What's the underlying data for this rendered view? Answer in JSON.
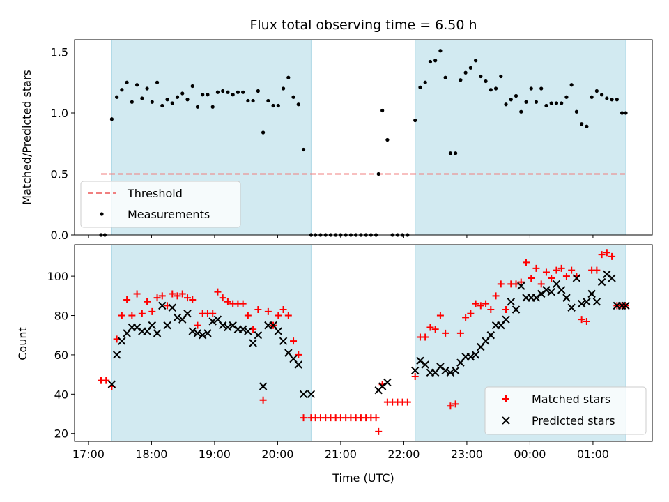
{
  "chart_data": {
    "type": "scatter",
    "title": "Flux total observing time = 6.50 h",
    "xlabel": "Time (UTC)",
    "x_range_hours": [
      16.78,
      25.94
    ],
    "x_ticks": [
      "17:00",
      "18:00",
      "19:00",
      "20:00",
      "21:00",
      "22:00",
      "23:00",
      "00:00",
      "01:00"
    ],
    "x_tick_hours": [
      17,
      18,
      19,
      20,
      21,
      22,
      23,
      24,
      25
    ],
    "observing_windows_hours": [
      [
        17.37,
        20.53
      ],
      [
        22.18,
        25.52
      ]
    ],
    "window_color": "#add8e6",
    "ratio_panel": {
      "ylabel": "Matched/Predicted stars",
      "ylim": [
        0,
        1.6
      ],
      "yticks": [
        0.0,
        0.5,
        1.0,
        1.5
      ],
      "ytick_labels": [
        "0.0",
        "0.5",
        "1.0",
        "1.5"
      ],
      "legend_position": "lower-left",
      "threshold": {
        "name": "Threshold",
        "value": 0.5,
        "x": [
          17.2,
          25.52
        ],
        "color": "#f08080"
      },
      "measurements": {
        "name": "Measurements",
        "color": "#000000",
        "x": [
          17.2,
          17.26,
          17.37,
          17.45,
          17.53,
          17.61,
          17.69,
          17.77,
          17.85,
          17.93,
          18.01,
          18.09,
          18.17,
          18.25,
          18.33,
          18.41,
          18.49,
          18.57,
          18.65,
          18.73,
          18.81,
          18.89,
          18.97,
          19.05,
          19.13,
          19.21,
          19.29,
          19.37,
          19.45,
          19.53,
          19.61,
          19.69,
          19.77,
          19.85,
          19.93,
          20.01,
          20.09,
          20.17,
          20.25,
          20.33,
          20.41,
          20.53,
          20.6,
          20.68,
          20.76,
          20.84,
          20.92,
          21.0,
          21.08,
          21.16,
          21.24,
          21.32,
          21.4,
          21.48,
          21.56,
          21.6,
          21.66,
          21.74,
          21.82,
          21.9,
          21.98,
          22.06,
          22.18,
          22.26,
          22.34,
          22.42,
          22.5,
          22.58,
          22.66,
          22.74,
          22.82,
          22.9,
          22.98,
          23.06,
          23.14,
          23.22,
          23.3,
          23.38,
          23.46,
          23.54,
          23.62,
          23.7,
          23.78,
          23.86,
          23.94,
          24.02,
          24.1,
          24.18,
          24.26,
          24.34,
          24.42,
          24.5,
          24.58,
          24.66,
          24.74,
          24.82,
          24.9,
          24.98,
          25.06,
          25.14,
          25.22,
          25.3,
          25.38,
          25.46,
          25.52
        ],
        "y": [
          0.0,
          0.0,
          0.95,
          1.13,
          1.19,
          1.25,
          1.09,
          1.23,
          1.12,
          1.2,
          1.09,
          1.25,
          1.06,
          1.11,
          1.08,
          1.13,
          1.16,
          1.11,
          1.22,
          1.05,
          1.15,
          1.15,
          1.05,
          1.17,
          1.18,
          1.17,
          1.15,
          1.17,
          1.17,
          1.1,
          1.1,
          1.18,
          0.84,
          1.1,
          1.06,
          1.06,
          1.2,
          1.29,
          1.13,
          1.07,
          0.7,
          0.0,
          0.0,
          0.0,
          0.0,
          0.0,
          0.0,
          0.0,
          0.0,
          0.0,
          0.0,
          0.0,
          0.0,
          0.0,
          0.0,
          0.5,
          1.02,
          0.78,
          0.0,
          0.0,
          0.0,
          0.0,
          0.94,
          1.21,
          1.25,
          1.42,
          1.43,
          1.51,
          1.29,
          0.67,
          0.67,
          1.27,
          1.33,
          1.37,
          1.43,
          1.3,
          1.26,
          1.19,
          1.2,
          1.3,
          1.07,
          1.11,
          1.14,
          1.01,
          1.09,
          1.2,
          1.09,
          1.2,
          1.06,
          1.08,
          1.08,
          1.08,
          1.13,
          1.23,
          1.01,
          0.91,
          0.89,
          1.13,
          1.18,
          1.15,
          1.12,
          1.11,
          1.11,
          1.0,
          1.0
        ]
      }
    },
    "count_panel": {
      "ylabel": "Count",
      "ylim": [
        16,
        116
      ],
      "yticks": [
        20,
        40,
        60,
        80,
        100
      ],
      "ytick_labels": [
        "20",
        "40",
        "60",
        "80",
        "100"
      ],
      "legend_position": "lower-right",
      "series": [
        {
          "name": "Matched stars",
          "marker": "plus",
          "color": "#ff0000",
          "x": [
            17.2,
            17.28,
            17.37,
            17.45,
            17.53,
            17.61,
            17.69,
            17.77,
            17.85,
            17.93,
            18.01,
            18.09,
            18.17,
            18.25,
            18.33,
            18.41,
            18.49,
            18.57,
            18.65,
            18.73,
            18.81,
            18.89,
            18.97,
            19.05,
            19.13,
            19.21,
            19.29,
            19.37,
            19.45,
            19.53,
            19.61,
            19.69,
            19.77,
            19.85,
            19.93,
            20.01,
            20.09,
            20.17,
            20.25,
            20.33,
            20.41,
            20.53,
            20.6,
            20.68,
            20.76,
            20.84,
            20.92,
            21.0,
            21.08,
            21.16,
            21.24,
            21.32,
            21.4,
            21.48,
            21.56,
            21.6,
            21.66,
            21.74,
            21.82,
            21.9,
            21.98,
            22.06,
            22.18,
            22.26,
            22.34,
            22.42,
            22.5,
            22.58,
            22.66,
            22.74,
            22.82,
            22.9,
            22.98,
            23.06,
            23.14,
            23.22,
            23.3,
            23.38,
            23.46,
            23.54,
            23.62,
            23.7,
            23.78,
            23.86,
            23.94,
            24.02,
            24.1,
            24.18,
            24.26,
            24.34,
            24.42,
            24.5,
            24.58,
            24.66,
            24.74,
            24.82,
            24.9,
            24.98,
            25.06,
            25.14,
            25.22,
            25.3,
            25.38,
            25.46,
            25.52
          ],
          "y": [
            47,
            47,
            44,
            68,
            80,
            88,
            80,
            91,
            81,
            87,
            82,
            89,
            90,
            85,
            91,
            90,
            91,
            89,
            88,
            75,
            81,
            81,
            81,
            92,
            89,
            87,
            86,
            86,
            86,
            80,
            73,
            83,
            37,
            82,
            75,
            80,
            83,
            80,
            67,
            60,
            28,
            28,
            28,
            28,
            28,
            28,
            28,
            28,
            28,
            28,
            28,
            28,
            28,
            28,
            28,
            21,
            45,
            36,
            36,
            36,
            36,
            36,
            49,
            69,
            69,
            74,
            73,
            80,
            71,
            34,
            35,
            71,
            79,
            81,
            86,
            85,
            86,
            83,
            90,
            96,
            83,
            96,
            96,
            97,
            107,
            99,
            104,
            96,
            102,
            99,
            103,
            104,
            100,
            103,
            100,
            78,
            77,
            103,
            103,
            111,
            112,
            110,
            85,
            85,
            85
          ]
        },
        {
          "name": "Predicted stars",
          "marker": "x",
          "color": "#000000",
          "x": [
            17.37,
            17.45,
            17.53,
            17.61,
            17.69,
            17.77,
            17.85,
            17.93,
            18.01,
            18.09,
            18.17,
            18.25,
            18.33,
            18.41,
            18.49,
            18.57,
            18.65,
            18.73,
            18.81,
            18.89,
            18.97,
            19.05,
            19.13,
            19.21,
            19.29,
            19.37,
            19.45,
            19.53,
            19.61,
            19.69,
            19.77,
            19.85,
            19.93,
            20.01,
            20.09,
            20.17,
            20.25,
            20.33,
            20.41,
            20.53,
            21.6,
            21.66,
            21.74,
            22.18,
            22.26,
            22.34,
            22.42,
            22.5,
            22.58,
            22.66,
            22.74,
            22.82,
            22.9,
            22.98,
            23.06,
            23.14,
            23.22,
            23.3,
            23.38,
            23.46,
            23.54,
            23.62,
            23.7,
            23.78,
            23.86,
            23.94,
            24.02,
            24.1,
            24.18,
            24.26,
            24.34,
            24.42,
            24.5,
            24.58,
            24.66,
            24.74,
            24.82,
            24.9,
            24.98,
            25.06,
            25.14,
            25.22,
            25.3,
            25.38,
            25.46,
            25.52
          ],
          "y": [
            45,
            60,
            67,
            71,
            74,
            74,
            72,
            72,
            75,
            71,
            85,
            75,
            84,
            79,
            78,
            81,
            72,
            71,
            70,
            71,
            77,
            78,
            75,
            74,
            75,
            73,
            73,
            72,
            66,
            70,
            44,
            75,
            75,
            72,
            67,
            61,
            58,
            55,
            40,
            40,
            42,
            44,
            46,
            52,
            57,
            55,
            51,
            51,
            54,
            52,
            51,
            52,
            56,
            59,
            59,
            60,
            64,
            67,
            70,
            75,
            75,
            78,
            87,
            83,
            95,
            89,
            89,
            89,
            91,
            93,
            92,
            96,
            93,
            89,
            84,
            99,
            86,
            87,
            91,
            87,
            97,
            101,
            99,
            85,
            85,
            85
          ]
        }
      ]
    }
  }
}
